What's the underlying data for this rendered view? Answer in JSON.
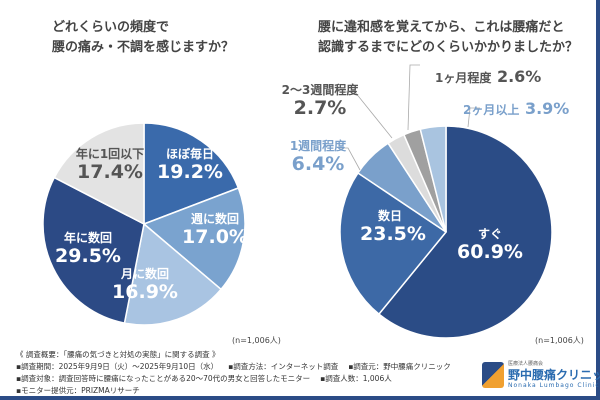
{
  "chart_data": [
    {
      "type": "pie",
      "title": "どれくらいの頻度で腰の痛み・不調を感じますか？",
      "title_lines": [
        "どれくらいの頻度で",
        "腰の痛み・不調を感じますか？"
      ],
      "n_label": "(n=1,006人)",
      "slices": [
        {
          "label": "ほぼ毎日",
          "value": 19.2,
          "text": "19.2%",
          "color": "#3a6aab"
        },
        {
          "label": "週に数回",
          "value": 17.0,
          "text": "17.0%",
          "color": "#7aa3cf"
        },
        {
          "label": "月に数回",
          "value": 16.9,
          "text": "16.9%",
          "color": "#a9c4e2"
        },
        {
          "label": "年に数回",
          "value": 29.5,
          "text": "29.5%",
          "color": "#2c4a85"
        },
        {
          "label": "年に1回以下",
          "value": 17.4,
          "text": "17.4%",
          "color": "#e3e3e3"
        }
      ]
    },
    {
      "type": "pie",
      "title": "腰に違和感を覚えてから、これは腰痛だと認識するまでにどのくらいかかりましたか？",
      "title_lines": [
        "腰に違和感を覚えてから、これは腰痛だと",
        "認識するまでにどのくらいかかりましたか？"
      ],
      "n_label": "(n=1,006人)",
      "slices": [
        {
          "label": "すぐ",
          "value": 60.9,
          "text": "60.9%",
          "color": "#2b4c86"
        },
        {
          "label": "数日",
          "value": 23.5,
          "text": "23.5%",
          "color": "#3d69a6"
        },
        {
          "label": "1週間程度",
          "value": 6.4,
          "text": "6.4%",
          "color": "#7aa0cb"
        },
        {
          "label": "2〜3週間程度",
          "value": 2.7,
          "text": "2.7%",
          "color": "#dcdcdc"
        },
        {
          "label": "1ヶ月程度",
          "value": 2.6,
          "text": "2.6%",
          "color": "#a0a0a0"
        },
        {
          "label": "2ヶ月以上",
          "value": 3.9,
          "text": "3.9%",
          "color": "#a9c4e0"
        }
      ]
    }
  ],
  "footer": {
    "heading": "《 調査概要：「腰痛の気づきと対処の実態」に関する調査 》",
    "items": [
      "▪調査期間：2025年9月9日（火）〜2025年9月10日（水）",
      "▪調査方法：インターネット調査",
      "▪調査元：野中腰痛クリニック",
      "▪調査対象：調査回答時に腰痛になったことがある20〜70代の男女と回答したモニター",
      "▪調査人数：1,006人",
      "▪モニター提供元：PRIZMAリサーチ"
    ]
  },
  "logo": {
    "sub": "医療法人腰痛会",
    "name": "野中腰痛クリニック",
    "en": "Nonaka Lumbago Clinic"
  }
}
